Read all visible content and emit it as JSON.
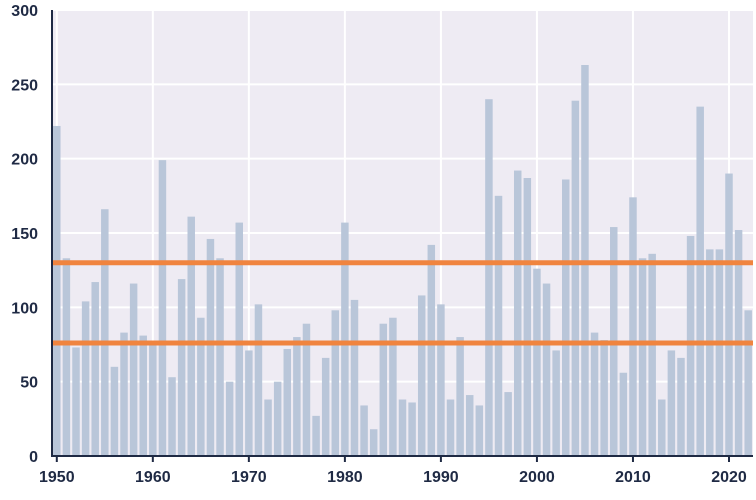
{
  "chart_data": {
    "type": "bar",
    "title": "",
    "xlabel": "",
    "ylabel": "",
    "x": [
      1950,
      1951,
      1952,
      1953,
      1954,
      1955,
      1956,
      1957,
      1958,
      1959,
      1960,
      1961,
      1962,
      1963,
      1964,
      1965,
      1966,
      1967,
      1968,
      1969,
      1970,
      1971,
      1972,
      1973,
      1974,
      1975,
      1976,
      1977,
      1978,
      1979,
      1980,
      1981,
      1982,
      1983,
      1984,
      1985,
      1986,
      1987,
      1988,
      1989,
      1990,
      1991,
      1992,
      1993,
      1994,
      1995,
      1996,
      1997,
      1998,
      1999,
      2000,
      2001,
      2002,
      2003,
      2004,
      2005,
      2006,
      2007,
      2008,
      2009,
      2010,
      2011,
      2012,
      2013,
      2014,
      2015,
      2016,
      2017,
      2018,
      2019,
      2020,
      2021,
      2022
    ],
    "values": [
      222,
      133,
      73,
      104,
      117,
      166,
      60,
      83,
      116,
      81,
      77,
      199,
      53,
      119,
      161,
      93,
      146,
      133,
      50,
      157,
      71,
      102,
      38,
      50,
      72,
      80,
      89,
      27,
      66,
      98,
      157,
      105,
      34,
      18,
      89,
      93,
      38,
      36,
      108,
      142,
      102,
      38,
      80,
      41,
      34,
      240,
      175,
      43,
      192,
      187,
      126,
      116,
      71,
      186,
      239,
      263,
      83,
      78,
      154,
      56,
      174,
      133,
      136,
      38,
      71,
      66,
      148,
      235,
      139,
      139,
      190,
      152,
      98
    ],
    "reference_lines": [
      {
        "value": 130,
        "color": "#f0843f"
      },
      {
        "value": 76,
        "color": "#f0843f"
      }
    ],
    "ylim": [
      0,
      300
    ],
    "yticks": [
      0,
      50,
      100,
      150,
      200,
      250,
      300
    ],
    "xticks": [
      1950,
      1960,
      1970,
      1980,
      1990,
      2000,
      2010,
      2020
    ],
    "xlim": [
      1949.5,
      2022.5
    ],
    "grid": true,
    "colors": {
      "bar": "#b9c6d9",
      "plot_background": "#eeebf3",
      "grid": "#ffffff",
      "axis": "#1f2a44",
      "reference": "#f0843f"
    }
  }
}
